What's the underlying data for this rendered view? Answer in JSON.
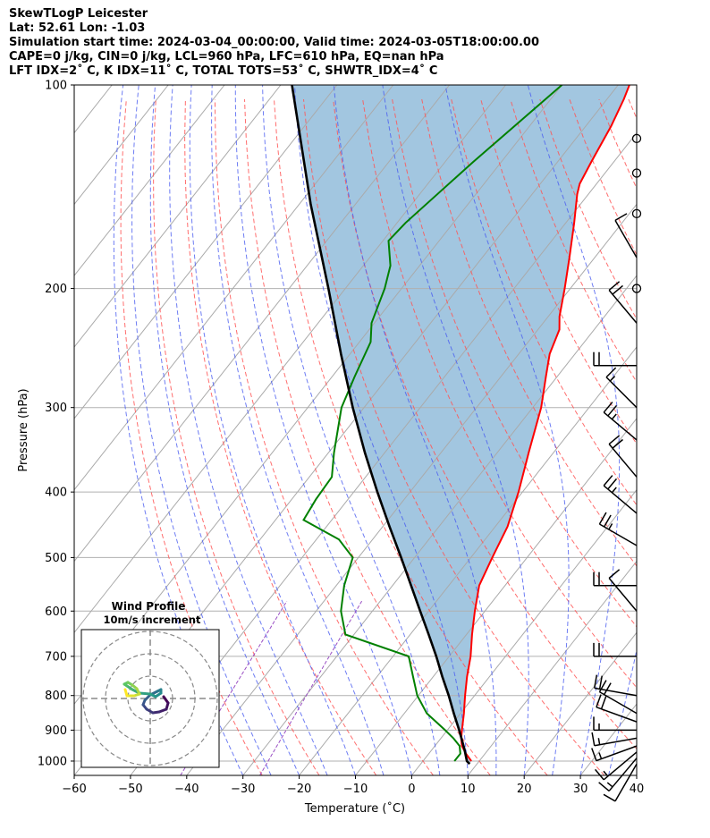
{
  "header": {
    "line1": "SkewTLogP Leicester",
    "line2": "Lat: 52.61   Lon: -1.03",
    "line3": "Simulation start time: 2024-03-04_00:00:00, Valid time: 2024-03-05T18:00:00.00",
    "line4": "CAPE=0 j/kg, CIN=0 j/kg, LCL=960 hPa, LFC=610 hPa, EQ=nan hPa",
    "line5": "LFT IDX=2˚ C, K IDX=11˚ C, TOTAL TOTS=53˚ C, SHWTR_IDX=4˚ C"
  },
  "colors": {
    "temperature": "#ff0000",
    "dewpoint": "#008000",
    "parcel": "#000000",
    "shading": "#a2c6e0",
    "dry_adiabat": "#ff5555",
    "moist_adiabat": "#4a5cf0",
    "mixing_ratio": "#9a4fc4",
    "isotherm": "#aaaaaa"
  },
  "chart_data": {
    "type": "skewt",
    "xlabel": "Temperature (˚C)",
    "ylabel": "Pressure (hPa)",
    "xlim": [
      -60,
      40
    ],
    "ylim": [
      1050,
      100
    ],
    "x_ticks": [
      "−60",
      "−50",
      "−40",
      "−30",
      "−20",
      "−10",
      "0",
      "10",
      "20",
      "30",
      "40"
    ],
    "x_tick_values": [
      -60,
      -50,
      -40,
      -30,
      -20,
      -10,
      0,
      10,
      20,
      30,
      40
    ],
    "y_ticks": [
      "100",
      "200",
      "300",
      "400",
      "500",
      "600",
      "700",
      "800",
      "900",
      "1000"
    ],
    "y_tick_values": [
      100,
      200,
      300,
      400,
      500,
      600,
      700,
      800,
      900,
      1000
    ],
    "temperature_profile": [
      [
        1000,
        8.6
      ],
      [
        975,
        6.6
      ],
      [
        950,
        4.8
      ],
      [
        925,
        3.6
      ],
      [
        900,
        2.6
      ],
      [
        850,
        0.6
      ],
      [
        800,
        -1.7
      ],
      [
        750,
        -4.0
      ],
      [
        700,
        -6.2
      ],
      [
        650,
        -9.0
      ],
      [
        600,
        -11.8
      ],
      [
        550,
        -14.6
      ],
      [
        500,
        -16.2
      ],
      [
        450,
        -17.8
      ],
      [
        400,
        -20.7
      ],
      [
        350,
        -24.4
      ],
      [
        300,
        -28.5
      ],
      [
        270,
        -32.0
      ],
      [
        250,
        -34.5
      ],
      [
        230,
        -36.2
      ],
      [
        220,
        -38.0
      ],
      [
        200,
        -41.0
      ],
      [
        180,
        -44.5
      ],
      [
        160,
        -48.5
      ],
      [
        145,
        -52.0
      ],
      [
        140,
        -53.0
      ],
      [
        130,
        -54.0
      ],
      [
        115,
        -55.5
      ],
      [
        105,
        -57.0
      ],
      [
        100,
        -58.0
      ]
    ],
    "dewpoint_profile": [
      [
        1000,
        5.6
      ],
      [
        975,
        5.6
      ],
      [
        950,
        4.4
      ],
      [
        925,
        2.2
      ],
      [
        900,
        -0.4
      ],
      [
        850,
        -6.0
      ],
      [
        800,
        -10.2
      ],
      [
        750,
        -13.6
      ],
      [
        700,
        -17.2
      ],
      [
        650,
        -31.5
      ],
      [
        600,
        -35.6
      ],
      [
        550,
        -38.6
      ],
      [
        500,
        -41.0
      ],
      [
        470,
        -46.0
      ],
      [
        440,
        -55.0
      ],
      [
        410,
        -55.7
      ],
      [
        380,
        -56.0
      ],
      [
        350,
        -59.0
      ],
      [
        300,
        -64.0
      ],
      [
        270,
        -66.0
      ],
      [
        240,
        -68.0
      ],
      [
        225,
        -70.5
      ],
      [
        200,
        -73.0
      ],
      [
        185,
        -75.2
      ],
      [
        170,
        -79.0
      ],
      [
        160,
        -78.5
      ],
      [
        130,
        -75.0
      ],
      [
        100,
        -70.0
      ]
    ],
    "parcel_profile": [
      [
        1010,
        8.7
      ],
      [
        1000,
        7.8
      ],
      [
        960,
        5.7
      ],
      [
        950,
        5.1
      ],
      [
        900,
        2.1
      ],
      [
        850,
        -1.2
      ],
      [
        800,
        -4.6
      ],
      [
        750,
        -8.4
      ],
      [
        700,
        -12.3
      ],
      [
        650,
        -16.7
      ],
      [
        600,
        -21.5
      ],
      [
        550,
        -26.7
      ],
      [
        500,
        -32.4
      ],
      [
        450,
        -38.8
      ],
      [
        400,
        -45.8
      ],
      [
        350,
        -53.5
      ],
      [
        300,
        -62.0
      ],
      [
        250,
        -71.6
      ],
      [
        200,
        -83.0
      ],
      [
        150,
        -98.0
      ],
      [
        100,
        -118.0
      ]
    ],
    "wind_barbs": [
      {
        "p": 1010,
        "speed_kt": 10,
        "dir_deg": 210
      },
      {
        "p": 990,
        "speed_kt": 15,
        "dir_deg": 220
      },
      {
        "p": 970,
        "speed_kt": 15,
        "dir_deg": 230
      },
      {
        "p": 950,
        "speed_kt": 15,
        "dir_deg": 250
      },
      {
        "p": 925,
        "speed_kt": 15,
        "dir_deg": 260
      },
      {
        "p": 900,
        "speed_kt": 15,
        "dir_deg": 270
      },
      {
        "p": 875,
        "speed_kt": 20,
        "dir_deg": 290
      },
      {
        "p": 850,
        "speed_kt": 20,
        "dir_deg": 300
      },
      {
        "p": 800,
        "speed_kt": 20,
        "dir_deg": 280
      },
      {
        "p": 700,
        "speed_kt": 20,
        "dir_deg": 270
      },
      {
        "p": 600,
        "speed_kt": 10,
        "dir_deg": 320
      },
      {
        "p": 550,
        "speed_kt": 20,
        "dir_deg": 270
      },
      {
        "p": 480,
        "speed_kt": 25,
        "dir_deg": 300
      },
      {
        "p": 430,
        "speed_kt": 25,
        "dir_deg": 310
      },
      {
        "p": 380,
        "speed_kt": 20,
        "dir_deg": 320
      },
      {
        "p": 335,
        "speed_kt": 25,
        "dir_deg": 310
      },
      {
        "p": 300,
        "speed_kt": 15,
        "dir_deg": 315
      },
      {
        "p": 260,
        "speed_kt": 20,
        "dir_deg": 270
      },
      {
        "p": 225,
        "speed_kt": 20,
        "dir_deg": 320
      },
      {
        "p": 200,
        "speed_kt": 0,
        "dir_deg": 0
      },
      {
        "p": 180,
        "speed_kt": 10,
        "dir_deg": 330
      },
      {
        "p": 155,
        "speed_kt": 0,
        "dir_deg": 0
      },
      {
        "p": 135,
        "speed_kt": 0,
        "dir_deg": 0
      },
      {
        "p": 120,
        "speed_kt": 0,
        "dir_deg": 0
      }
    ],
    "inset": {
      "title": "Wind Profile",
      "subtitle": "10m/s increment",
      "hodograph_uv": [
        [
          1.5,
          0.2
        ],
        [
          2.0,
          -0.5
        ],
        [
          1.8,
          -1.2
        ],
        [
          1.0,
          -1.5
        ],
        [
          0.3,
          -1.6
        ],
        [
          -0.4,
          -1.2
        ],
        [
          -0.8,
          -0.7
        ],
        [
          -0.6,
          -0.2
        ],
        [
          0.0,
          0.4
        ],
        [
          0.8,
          0.8
        ],
        [
          1.2,
          1.0
        ],
        [
          1.2,
          0.6
        ],
        [
          0.6,
          0.2
        ],
        [
          0.0,
          0.5
        ],
        [
          -1.2,
          0.6
        ],
        [
          -2.0,
          1.0
        ],
        [
          -2.6,
          1.4
        ],
        [
          -2.9,
          1.6
        ],
        [
          -2.5,
          1.8
        ],
        [
          -2.0,
          1.5
        ],
        [
          -1.5,
          1.1
        ],
        [
          -1.2,
          0.5
        ],
        [
          -1.8,
          0.3
        ],
        [
          -2.6,
          0.3
        ],
        [
          -2.8,
          1.0
        ]
      ]
    }
  }
}
